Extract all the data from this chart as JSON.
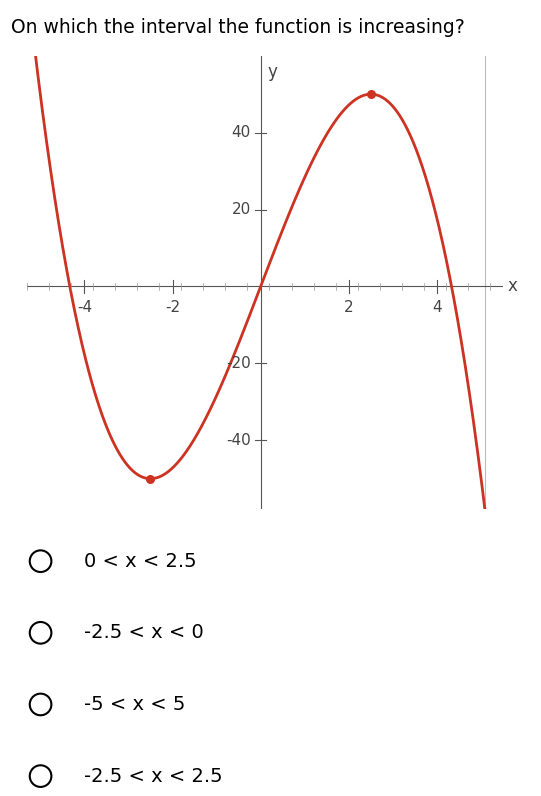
{
  "title": "On which the interval the function is increasing?",
  "curve_color": "#cc3322",
  "dot_color": "#cc3322",
  "bg_color": "#ffffff",
  "x_ticks": [
    -4,
    -2,
    2,
    4
  ],
  "y_ticks": [
    -40,
    -20,
    20,
    40
  ],
  "xlim": [
    -5.3,
    5.5
  ],
  "ylim": [
    -58,
    60
  ],
  "x_label": "x",
  "y_label": "y",
  "local_min_x": -2.5,
  "local_max_x": 3.0,
  "cubic_a": -1.6,
  "cubic_b": 30.0,
  "options": [
    "0 < x < 2.5",
    "-2.5 < x < 0",
    "-5 < x < 5",
    "-2.5 < x < 2.5"
  ],
  "option_font_size": 14,
  "title_font_size": 13.5,
  "right_border_x": 5.1,
  "right_border_color": "#bbbbbb"
}
